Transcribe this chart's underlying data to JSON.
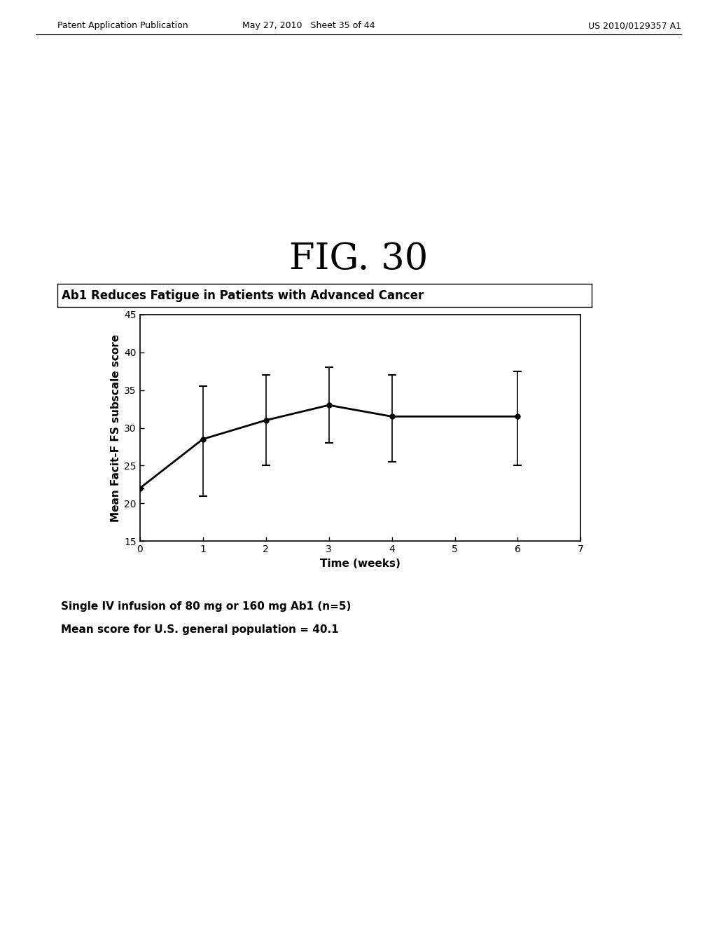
{
  "title": "FIG. 30",
  "chart_title": "Ab1 Reduces Fatigue in Patients with Advanced Cancer",
  "xlabel": "Time (weeks)",
  "ylabel": "Mean Facit-F FS subscale score",
  "x": [
    0,
    1,
    2,
    3,
    4,
    6
  ],
  "y": [
    22.0,
    28.5,
    31.0,
    33.0,
    31.5,
    31.5
  ],
  "yerr_low": [
    22.0,
    21.0,
    25.0,
    28.0,
    25.5,
    25.0
  ],
  "yerr_high": [
    22.0,
    35.5,
    37.0,
    38.0,
    37.0,
    37.5
  ],
  "xlim": [
    0,
    7
  ],
  "ylim": [
    15,
    45
  ],
  "yticks": [
    15,
    20,
    25,
    30,
    35,
    40,
    45
  ],
  "xticks": [
    0,
    1,
    2,
    3,
    4,
    5,
    6,
    7
  ],
  "caption_line1": "Single IV infusion of 80 mg or 160 mg Ab1 (n=5)",
  "caption_line2": "Mean score for U.S. general population = 40.1",
  "header_text_left": "Patent Application Publication",
  "header_text_mid": "May 27, 2010   Sheet 35 of 44",
  "header_text_right": "US 2010/0129357 A1",
  "background_color": "#ffffff",
  "line_color": "#000000",
  "title_fontsize": 38,
  "axis_label_fontsize": 11,
  "tick_fontsize": 10,
  "caption_fontsize": 11,
  "chart_title_fontsize": 12,
  "header_fontsize": 9
}
